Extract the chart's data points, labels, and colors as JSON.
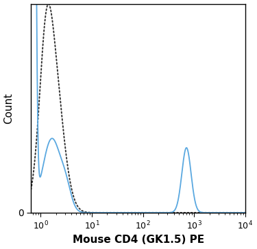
{
  "title": "",
  "xlabel": "Mouse CD4 (GK1.5) PE",
  "ylabel": "Count",
  "xlim_log": [
    0.65,
    10000
  ],
  "ylim": [
    0,
    1.0
  ],
  "background_color": "#ffffff",
  "solid_color": "#5aa8e0",
  "dashed_color": "#333333",
  "x_ticks": [
    1,
    10,
    100,
    1000,
    10000
  ],
  "x_tick_labels": [
    "$10^0$",
    "$10^1$",
    "$10^2$",
    "$10^3$",
    "$10^4$"
  ]
}
